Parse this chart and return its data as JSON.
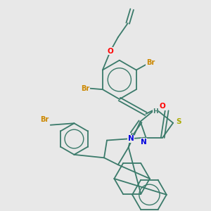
{
  "background_color": "#e8e8e8",
  "bond_color": "#3a7a6a",
  "atom_colors": {
    "Br": "#cc8800",
    "O": "#ff0000",
    "N": "#0000dd",
    "S": "#aaaa00",
    "H": "#3a7a6a",
    "C": "#3a7a6a"
  }
}
